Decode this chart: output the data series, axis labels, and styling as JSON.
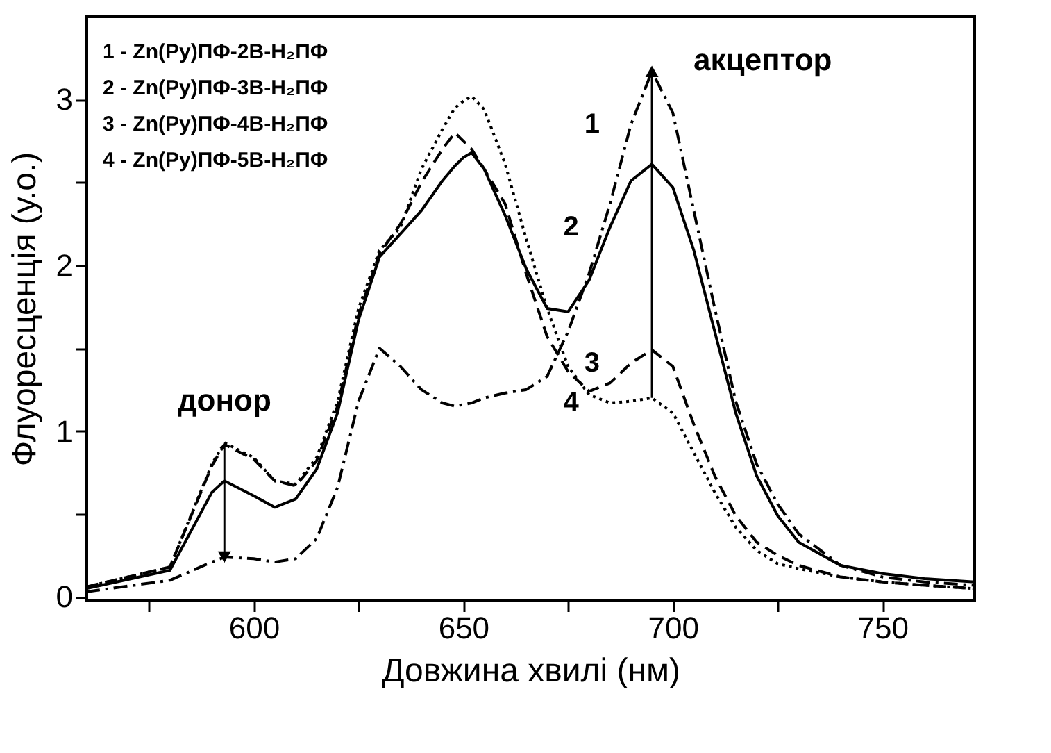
{
  "chart_data": {
    "type": "line",
    "xlabel": "Довжина хвилі (нм)",
    "ylabel": "Флуоресценція (у.о.)",
    "x": [
      560,
      580,
      590,
      593,
      600,
      605,
      610,
      615,
      620,
      625,
      630,
      635,
      640,
      645,
      648,
      650,
      652,
      655,
      660,
      665,
      670,
      675,
      680,
      685,
      690,
      695,
      700,
      705,
      710,
      715,
      720,
      725,
      730,
      740,
      750,
      760,
      772
    ],
    "series": [
      {
        "color": "#000000",
        "line_style": "dashdot",
        "values": [
          0.03,
          0.1,
          0.21,
          0.24,
          0.23,
          0.21,
          0.23,
          0.35,
          0.66,
          1.18,
          1.5,
          1.39,
          1.25,
          1.17,
          1.15,
          1.16,
          1.17,
          1.2,
          1.23,
          1.25,
          1.33,
          1.6,
          1.95,
          2.37,
          2.85,
          3.17,
          2.92,
          2.33,
          1.74,
          1.18,
          0.8,
          0.56,
          0.38,
          0.19,
          0.12,
          0.09,
          0.07
        ]
      },
      {
        "color": "#000000",
        "line_style": "solid",
        "values": [
          0.05,
          0.16,
          0.63,
          0.7,
          0.61,
          0.54,
          0.59,
          0.77,
          1.11,
          1.67,
          2.05,
          2.19,
          2.33,
          2.51,
          2.6,
          2.65,
          2.68,
          2.58,
          2.3,
          1.98,
          1.74,
          1.72,
          1.91,
          2.23,
          2.51,
          2.61,
          2.47,
          2.09,
          1.6,
          1.11,
          0.73,
          0.49,
          0.33,
          0.19,
          0.14,
          0.11,
          0.09
        ]
      },
      {
        "color": "#000000",
        "line_style": "dashed",
        "values": [
          0.06,
          0.18,
          0.79,
          0.92,
          0.83,
          0.7,
          0.67,
          0.82,
          1.15,
          1.7,
          2.07,
          2.25,
          2.5,
          2.7,
          2.8,
          2.75,
          2.7,
          2.58,
          2.37,
          1.95,
          1.57,
          1.36,
          1.24,
          1.29,
          1.41,
          1.49,
          1.39,
          1.04,
          0.73,
          0.49,
          0.33,
          0.25,
          0.19,
          0.12,
          0.09,
          0.07,
          0.05
        ]
      },
      {
        "color": "#000000",
        "line_style": "dotted",
        "values": [
          0.06,
          0.18,
          0.8,
          0.93,
          0.84,
          0.7,
          0.68,
          0.84,
          1.18,
          1.74,
          2.09,
          2.23,
          2.58,
          2.82,
          2.95,
          2.99,
          3.02,
          2.94,
          2.61,
          2.16,
          1.74,
          1.39,
          1.22,
          1.17,
          1.18,
          1.2,
          1.11,
          0.87,
          0.63,
          0.42,
          0.28,
          0.2,
          0.17,
          0.12,
          0.09,
          0.07,
          0.05
        ]
      }
    ],
    "xlim": [
      560,
      772
    ],
    "ylim": [
      -0.02,
      3.5
    ],
    "xticks": [
      {
        "value": 575,
        "label": null
      },
      600,
      {
        "value": 625,
        "label": null
      },
      650,
      {
        "value": 675,
        "label": null
      },
      700,
      {
        "value": 725,
        "label": null
      },
      750
    ],
    "yticks": [
      0,
      {
        "value": 0.5,
        "label": null
      },
      1,
      {
        "value": 1.5,
        "label": null
      },
      2,
      {
        "value": 2.5,
        "label": null
      },
      3
    ],
    "grid": false,
    "annotations": [
      "1 - Zn(Py)ПФ-2В-H₂ПФ",
      "2 - Zn(Py)ПФ-3В-H₂ПФ",
      "3 - Zn(Py)ПФ-4В-H₂ПФ",
      "4 - Zn(Py)ПФ-5В-H₂ПФ",
      {
        "text": "донор",
        "x": 593,
        "y": 0.93
      },
      {
        "text": "акцептор",
        "x": 695,
        "y": 3.17
      },
      {
        "text": "1",
        "x": 690,
        "y": 2.85
      },
      {
        "text": "2",
        "x": 685,
        "y": 2.23
      },
      {
        "text": "3",
        "x": 690,
        "y": 1.41
      },
      {
        "text": "4",
        "x": 685,
        "y": 1.17
      }
    ]
  }
}
